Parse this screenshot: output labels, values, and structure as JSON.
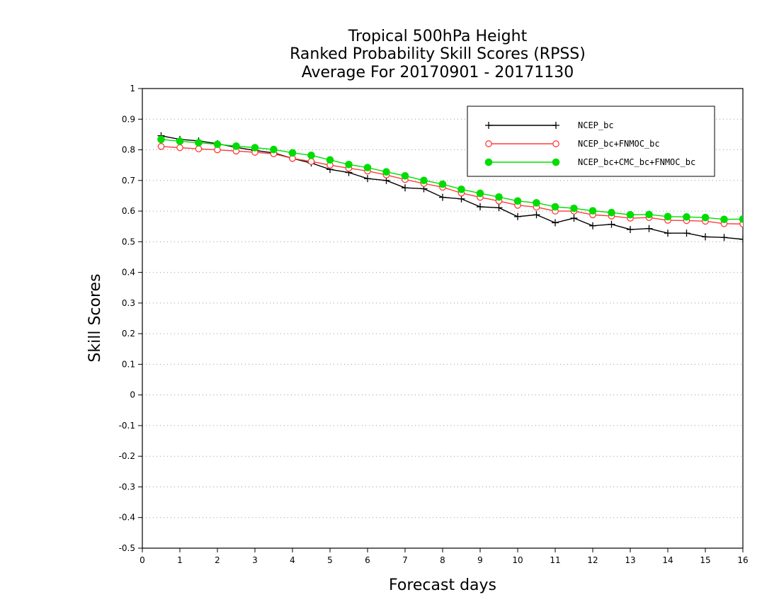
{
  "chart_data": {
    "type": "line",
    "title": [
      "Tropical 500hPa Height",
      "Ranked Probability Skill Scores (RPSS)",
      "Average For 20170901 - 20171130"
    ],
    "xlabel": "Forecast days",
    "ylabel": "Skill Scores",
    "xlim": [
      0,
      16
    ],
    "ylim": [
      -0.5,
      1
    ],
    "xticks": [
      "0",
      "1",
      "2",
      "3",
      "4",
      "5",
      "6",
      "7",
      "8",
      "9",
      "10",
      "11",
      "12",
      "13",
      "14",
      "15",
      "16"
    ],
    "yticks": [
      "-0.5",
      "-0.4",
      "-0.3",
      "-0.2",
      "-0.1",
      "0",
      "0.1",
      "0.2",
      "0.3",
      "0.4",
      "0.5",
      "0.6",
      "0.7",
      "0.8",
      "0.9",
      "1"
    ],
    "grid": "horizontal-dotted",
    "legend_position": "top-right",
    "x": [
      0.5,
      1,
      1.5,
      2,
      2.5,
      3,
      3.5,
      4,
      4.5,
      5,
      5.5,
      6,
      6.5,
      7,
      7.5,
      8,
      8.5,
      9,
      9.5,
      10,
      10.5,
      11,
      11.5,
      12,
      12.5,
      13,
      13.5,
      14,
      14.5,
      15,
      15.5,
      16
    ],
    "series": [
      {
        "name": "NCEP_bc",
        "color": "#000000",
        "marker": "plus",
        "values": [
          0.846,
          0.834,
          0.829,
          0.82,
          0.808,
          0.798,
          0.79,
          0.772,
          0.757,
          0.736,
          0.726,
          0.706,
          0.7,
          0.676,
          0.673,
          0.645,
          0.64,
          0.614,
          0.611,
          0.582,
          0.588,
          0.562,
          0.577,
          0.552,
          0.557,
          0.54,
          0.543,
          0.528,
          0.528,
          0.516,
          0.514,
          0.508
        ]
      },
      {
        "name": "NCEP_bc+FNMOC_bc",
        "color": "#ff3b3b",
        "marker": "open-circle",
        "values": [
          0.811,
          0.807,
          0.803,
          0.8,
          0.796,
          0.792,
          0.787,
          0.772,
          0.762,
          0.75,
          0.74,
          0.731,
          0.718,
          0.703,
          0.69,
          0.678,
          0.659,
          0.645,
          0.633,
          0.619,
          0.613,
          0.6,
          0.6,
          0.588,
          0.584,
          0.577,
          0.579,
          0.57,
          0.569,
          0.567,
          0.559,
          0.558
        ]
      },
      {
        "name": "NCEP_bc+CMC_bc+FNMOC_bc",
        "color": "#00dd00",
        "marker": "filled-circle",
        "values": [
          0.834,
          0.828,
          0.823,
          0.818,
          0.812,
          0.807,
          0.801,
          0.79,
          0.782,
          0.767,
          0.752,
          0.742,
          0.728,
          0.715,
          0.7,
          0.688,
          0.671,
          0.658,
          0.646,
          0.633,
          0.627,
          0.614,
          0.609,
          0.601,
          0.595,
          0.588,
          0.589,
          0.582,
          0.581,
          0.579,
          0.573,
          0.574
        ]
      }
    ]
  }
}
